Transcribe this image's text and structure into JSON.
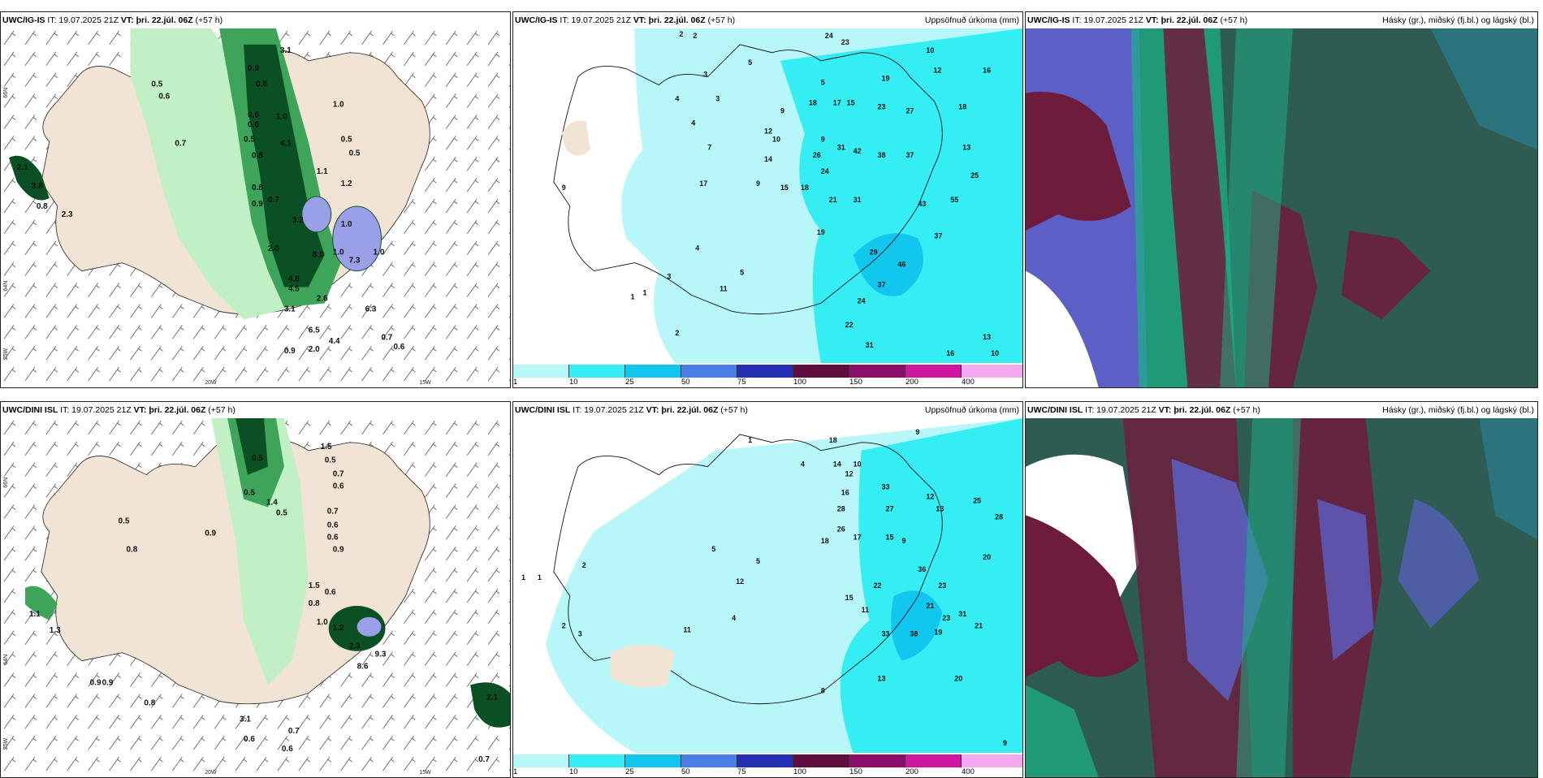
{
  "rows": [
    {
      "model": "UWC/IG-IS",
      "it": "IT: 19.07.2025 21Z",
      "vt_label": "VT:",
      "vt_value": "þri. 22.júl. 06Z",
      "lead": "(+57 h)",
      "precip_title": "Uppsöfnuð úrkoma (mm)",
      "cloud_title": "Hásky (gr.), miðský (fj.bl.) og lágský (bl.)",
      "wind_values": [
        "3.1",
        "0.9",
        "0.5",
        "0.6",
        "0.8",
        "0.6",
        "1.0",
        "0.7",
        "0.6",
        "0.5",
        "1.0",
        "4.1",
        "0.8",
        "0.5",
        "0.5",
        "0.8",
        "1.1",
        "1.2",
        "0.9",
        "0.7",
        "1.0",
        "3.2",
        "2.0",
        "1.0",
        "1.0",
        "4.8",
        "8.0",
        "7.3",
        "4.5",
        "2.6",
        "6.3",
        "3.1",
        "6.5",
        "4.4",
        "0.7",
        "0.9",
        "2.0",
        "0.6",
        "2.1",
        "3.8",
        "0.8",
        "2.3"
      ],
      "precip_values": [
        "2",
        "2",
        "24",
        "23",
        "10",
        "5",
        "3",
        "12",
        "16",
        "5",
        "4",
        "19",
        "4",
        "3",
        "9",
        "12",
        "18",
        "17",
        "15",
        "23",
        "18",
        "27",
        "13",
        "7",
        "14",
        "10",
        "9",
        "26",
        "31",
        "42",
        "38",
        "37",
        "24",
        "9",
        "15",
        "17",
        "18",
        "21",
        "31",
        "43",
        "19",
        "37",
        "25",
        "55",
        "29",
        "46",
        "37",
        "24",
        "22",
        "31",
        "13",
        "16",
        "10",
        "1",
        "1",
        "9",
        "2",
        "4",
        "11",
        "5",
        "3"
      ],
      "axis_lat": [
        "66N",
        "64N",
        "25W"
      ],
      "axis_lon": [
        "20W",
        "15W"
      ]
    },
    {
      "model": "UWC/DINI ISL",
      "it": "IT: 19.07.2025 21Z",
      "vt_label": "VT:",
      "vt_value": "þri. 22.júl. 06Z",
      "lead": "(+57 h)",
      "precip_title": "Uppsöfnuð úrkoma (mm)",
      "cloud_title": "Hásky (gr.), miðský (fj.bl.) og lágský (bl.)",
      "wind_values": [
        "1.5",
        "0.5",
        "0.5",
        "0.7",
        "0.6",
        "0.5",
        "1.4",
        "0.5",
        "0.9",
        "0.7",
        "0.6",
        "0.6",
        "0.5",
        "0.8",
        "0.9",
        "1.5",
        "0.6",
        "0.8",
        "1.0",
        "1.2",
        "2.3",
        "9.3",
        "8.6",
        "0.9",
        "0.9",
        "1.1",
        "1.3",
        "0.8",
        "3.1",
        "0.6",
        "0.7",
        "0.6",
        "2.1",
        "0.7"
      ],
      "precip_values": [
        "1",
        "18",
        "9",
        "4",
        "14",
        "10",
        "12",
        "33",
        "16",
        "28",
        "27",
        "13",
        "12",
        "25",
        "28",
        "26",
        "18",
        "17",
        "15",
        "9",
        "36",
        "23",
        "21",
        "20",
        "31",
        "38",
        "19",
        "33",
        "23",
        "21",
        "22",
        "15",
        "11",
        "13",
        "20",
        "9",
        "8",
        "5",
        "5",
        "12",
        "4",
        "2",
        "1",
        "1",
        "3",
        "11",
        "2"
      ],
      "axis_lat": [
        "66N",
        "64N",
        "25W"
      ],
      "axis_lon": [
        "20W",
        "15W"
      ]
    }
  ],
  "colorbar": {
    "ticks": [
      "1",
      "10",
      "25",
      "50",
      "75",
      "100",
      "150",
      "200",
      "400"
    ],
    "colors": [
      "#b7f7f9",
      "#34eef3",
      "#12c7ee",
      "#4a7fe6",
      "#2330b2",
      "#5d0e3f",
      "#8b0f6a",
      "#ce16a1",
      "#f2a8ef"
    ]
  },
  "colors": {
    "land": "#f1e4d5",
    "precip_light": "#b7f7f9",
    "precip_mid": "#34eef3",
    "green1": "#c1f0c4",
    "green2": "#3da45a",
    "green3": "#0b4f24",
    "cloud_dark": "#2e5b52",
    "cloud_teal": "#1bb388",
    "cloud_maroon": "#6e1c3b",
    "cloud_purple": "#5c5fc6"
  }
}
